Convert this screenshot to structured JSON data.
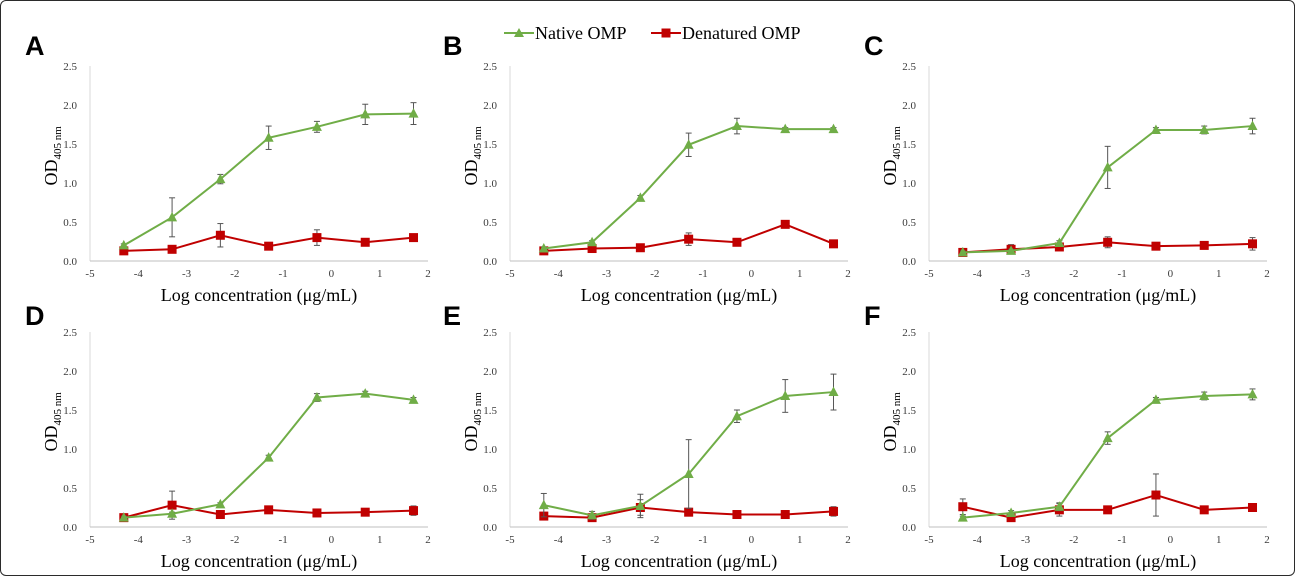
{
  "legend": {
    "items": [
      {
        "label": "Native OMP",
        "color": "#70ad47",
        "marker": "triangle"
      },
      {
        "label": "Denatured OMP",
        "color": "#c00000",
        "marker": "square"
      }
    ]
  },
  "axes": {
    "xlabel": "Log concentration (μg/mL)",
    "ylabel_main": "OD",
    "ylabel_sub": "405 nm",
    "xlim": [
      -5,
      2
    ],
    "ylim": [
      0,
      2.5
    ],
    "xticks": [
      "-5",
      "-4",
      "-3",
      "-2",
      "-1",
      "0",
      "1",
      "2"
    ],
    "yticks": [
      "0.0",
      "0.5",
      "1.0",
      "1.5",
      "2.0",
      "2.5"
    ]
  },
  "chart_data": [
    {
      "type": "line",
      "panel": "A",
      "x": [
        -4.3,
        -3.3,
        -2.3,
        -1.3,
        -0.3,
        0.7,
        1.7
      ],
      "series": [
        {
          "name": "Native OMP",
          "values": [
            0.2,
            0.56,
            1.05,
            1.58,
            1.72,
            1.88,
            1.89
          ],
          "errors": [
            0.02,
            0.25,
            0.06,
            0.15,
            0.07,
            0.13,
            0.14
          ]
        },
        {
          "name": "Denatured OMP",
          "values": [
            0.13,
            0.15,
            0.33,
            0.19,
            0.3,
            0.24,
            0.3
          ],
          "errors": [
            0.02,
            0.02,
            0.15,
            0.03,
            0.1,
            0.02,
            0.03
          ]
        }
      ]
    },
    {
      "type": "line",
      "panel": "B",
      "x": [
        -4.3,
        -3.3,
        -2.3,
        -1.3,
        -0.3,
        0.7,
        1.7
      ],
      "series": [
        {
          "name": "Native OMP",
          "values": [
            0.16,
            0.24,
            0.81,
            1.49,
            1.73,
            1.69,
            1.69
          ],
          "errors": [
            0.02,
            0.02,
            0.03,
            0.15,
            0.1,
            0.02,
            0.02
          ]
        },
        {
          "name": "Denatured OMP",
          "values": [
            0.13,
            0.16,
            0.17,
            0.28,
            0.24,
            0.47,
            0.22
          ],
          "errors": [
            0.02,
            0.02,
            0.02,
            0.08,
            0.02,
            0.03,
            0.02
          ]
        }
      ]
    },
    {
      "type": "line",
      "panel": "C",
      "x": [
        -4.3,
        -3.3,
        -2.3,
        -1.3,
        -0.3,
        0.7,
        1.7
      ],
      "series": [
        {
          "name": "Native OMP",
          "values": [
            0.11,
            0.13,
            0.23,
            1.2,
            1.68,
            1.68,
            1.73
          ],
          "errors": [
            0.02,
            0.02,
            0.03,
            0.27,
            0.03,
            0.05,
            0.1
          ]
        },
        {
          "name": "Denatured OMP",
          "values": [
            0.11,
            0.15,
            0.18,
            0.24,
            0.19,
            0.2,
            0.22
          ],
          "errors": [
            0.02,
            0.06,
            0.03,
            0.07,
            0.03,
            0.03,
            0.08
          ]
        }
      ]
    },
    {
      "type": "line",
      "panel": "D",
      "x": [
        -4.3,
        -3.3,
        -2.3,
        -1.3,
        -0.3,
        0.7,
        1.7
      ],
      "series": [
        {
          "name": "Native OMP",
          "values": [
            0.12,
            0.17,
            0.29,
            0.89,
            1.66,
            1.71,
            1.63
          ],
          "errors": [
            0.02,
            0.02,
            0.02,
            0.03,
            0.05,
            0.03,
            0.03
          ]
        },
        {
          "name": "Denatured OMP",
          "values": [
            0.12,
            0.28,
            0.16,
            0.22,
            0.18,
            0.19,
            0.21
          ],
          "errors": [
            0.02,
            0.18,
            0.02,
            0.02,
            0.02,
            0.02,
            0.06
          ]
        }
      ]
    },
    {
      "type": "line",
      "panel": "E",
      "x": [
        -4.3,
        -3.3,
        -2.3,
        -1.3,
        -0.3,
        0.7,
        1.7
      ],
      "series": [
        {
          "name": "Native OMP",
          "values": [
            0.28,
            0.15,
            0.27,
            0.68,
            1.42,
            1.68,
            1.73
          ],
          "errors": [
            0.15,
            0.05,
            0.15,
            0.44,
            0.08,
            0.21,
            0.23
          ]
        },
        {
          "name": "Denatured OMP",
          "values": [
            0.14,
            0.12,
            0.25,
            0.19,
            0.16,
            0.16,
            0.2
          ],
          "errors": [
            0.02,
            0.02,
            0.1,
            0.02,
            0.02,
            0.02,
            0.06
          ]
        }
      ]
    },
    {
      "type": "line",
      "panel": "F",
      "x": [
        -4.3,
        -3.3,
        -2.3,
        -1.3,
        -0.3,
        0.7,
        1.7
      ],
      "series": [
        {
          "name": "Native OMP",
          "values": [
            0.12,
            0.18,
            0.26,
            1.14,
            1.63,
            1.68,
            1.7
          ],
          "errors": [
            0.02,
            0.03,
            0.05,
            0.08,
            0.03,
            0.05,
            0.07
          ]
        },
        {
          "name": "Denatured OMP",
          "values": [
            0.26,
            0.12,
            0.22,
            0.22,
            0.41,
            0.22,
            0.25
          ],
          "errors": [
            0.1,
            0.04,
            0.08,
            0.03,
            0.27,
            0.03,
            0.05
          ]
        }
      ]
    }
  ]
}
